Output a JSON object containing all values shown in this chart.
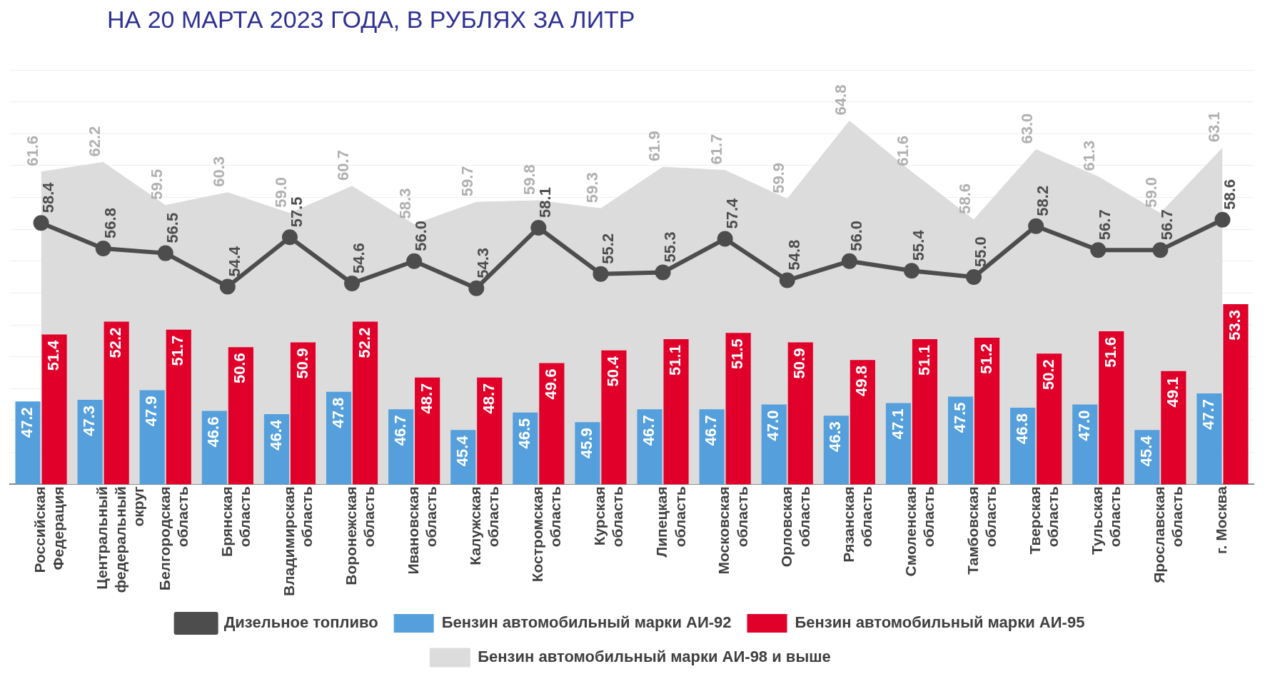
{
  "chart_data": {
    "type": "bar",
    "title": "НА 20 МАРТА 2023 ГОДА, В РУБЛЯХ ЗА ЛИТР",
    "categories": [
      "Российская\nФедерация",
      "Центральный\nфедеральный\nокруг",
      "Белгородская\nобласть",
      "Брянская\nобласть",
      "Владимирская\nобласть",
      "Воронежская\nобласть",
      "Ивановская\nобласть",
      "Калужская\nобласть",
      "Костромская\nобласть",
      "Курская\nобласть",
      "Липецкая\nобласть",
      "Московская\nобласть",
      "Орловская\nобласть",
      "Рязанская\nобласть",
      "Смоленская\nобласть",
      "Тамбовская\nобласть",
      "Тверская\nобласть",
      "Тульская\nобласть",
      "Ярославская\nобласть",
      "г. Москва"
    ],
    "series": [
      {
        "name": "Дизельное топливо",
        "type": "line",
        "color": "#4d4d4d",
        "marker": "circle",
        "values": [
          58.4,
          56.8,
          56.5,
          54.4,
          57.5,
          54.6,
          56.0,
          54.3,
          58.1,
          55.2,
          55.3,
          57.4,
          54.8,
          56.0,
          55.4,
          55.0,
          58.2,
          56.7,
          56.7,
          58.6
        ],
        "value_labels": [
          "58.4",
          "56.8",
          "56.5",
          "54.4",
          "57.5",
          "54.6",
          "56.0",
          "54.3",
          "58.1",
          "55.2",
          "55.3",
          "57.4",
          "54.8",
          "56.0",
          "55.4",
          "55.0",
          "58.2",
          "56.7",
          "56.7",
          "58.6"
        ]
      },
      {
        "name": "Бензин автомобильный марки АИ-92",
        "color": "#55a0dc",
        "values": [
          47.2,
          47.3,
          47.9,
          46.6,
          46.4,
          47.8,
          46.7,
          45.4,
          46.5,
          45.9,
          46.7,
          46.7,
          47.0,
          46.3,
          47.1,
          47.5,
          46.8,
          47.0,
          45.4,
          47.7
        ],
        "value_labels": [
          "47.2",
          "47.3",
          "47.9",
          "46.6",
          "46.4",
          "47.8",
          "46.7",
          "45.4",
          "46.5",
          "45.9",
          "46.7",
          "46.7",
          "47.0",
          "46.3",
          "47.1",
          "47.5",
          "46.8",
          "47.0",
          "45.4",
          "47.7"
        ]
      },
      {
        "name": "Бензин автомобильный марки АИ-95",
        "color": "#e0002a",
        "values": [
          51.4,
          52.2,
          51.7,
          50.6,
          50.9,
          52.2,
          48.7,
          48.7,
          49.6,
          50.4,
          51.1,
          51.5,
          50.9,
          49.8,
          51.1,
          51.2,
          50.2,
          51.6,
          49.1,
          53.3
        ],
        "value_labels": [
          "51.4",
          "52.2",
          "51.7",
          "50.6",
          "50.9",
          "52.2",
          "48.7",
          "48.7",
          "49.6",
          "50.4",
          "51.1",
          "51.5",
          "50.9",
          "49.8",
          "51.1",
          "51.2",
          "50.2",
          "51.6",
          "49.1",
          "53.3"
        ]
      },
      {
        "name": "Бензин автомобильный марки АИ-98 и выше",
        "type": "area",
        "color": "#dcdcdc",
        "marker": "none",
        "values": [
          61.6,
          62.2,
          59.5,
          60.3,
          59.0,
          60.7,
          58.3,
          59.7,
          59.8,
          59.3,
          61.9,
          61.7,
          59.9,
          64.8,
          61.6,
          58.6,
          63.0,
          61.3,
          59.0,
          63.1
        ],
        "value_labels": [
          "61.6",
          "62.2",
          "59.5",
          "60.3",
          "59.0",
          "60.7",
          "58.3",
          "59.7",
          "59.8",
          "59.3",
          "61.9",
          "61.7",
          "59.9",
          "64.8",
          "61.6",
          "58.6",
          "63.0",
          "61.3",
          "59.0",
          "63.1"
        ]
      }
    ],
    "ylim": [
      42,
      68
    ],
    "yticks": [
      {
        "value": 42,
        "label": null
      },
      {
        "value": 44,
        "label": null
      },
      {
        "value": 46,
        "label": null
      },
      {
        "value": 48,
        "label": null
      },
      {
        "value": 50,
        "label": null
      },
      {
        "value": 52,
        "label": null
      },
      {
        "value": 54,
        "label": null
      },
      {
        "value": 56,
        "label": null
      },
      {
        "value": 58,
        "label": null
      },
      {
        "value": 60,
        "label": null
      },
      {
        "value": 62,
        "label": null
      },
      {
        "value": 64,
        "label": null
      },
      {
        "value": 66,
        "label": null
      },
      {
        "value": 68,
        "label": null
      }
    ],
    "grid": "y",
    "tick_labels": "x",
    "legend": "bottom"
  }
}
